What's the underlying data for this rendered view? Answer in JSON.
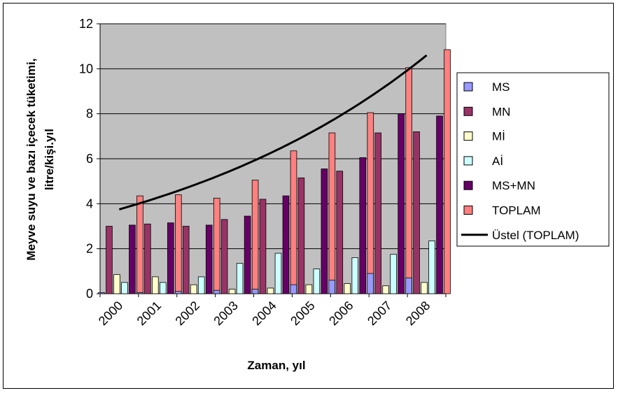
{
  "chart_data": {
    "type": "bar",
    "xlabel": "Zaman, yıl",
    "ylabel_lines": [
      "Meyve suyu ve bazı içecek tüketimi,",
      "litre/kişi.yıl"
    ],
    "ylim": [
      0,
      12
    ],
    "yticks": [
      "0",
      "2",
      "4",
      "6",
      "8",
      "10",
      "12"
    ],
    "categories": [
      "2000",
      "2001",
      "2002",
      "2003",
      "2004",
      "2005",
      "2006",
      "2007",
      "2008"
    ],
    "grid": true,
    "legend_position": "right",
    "series": [
      {
        "name": "MS",
        "color": "#9999ff",
        "values": [
          0.05,
          0.05,
          0.1,
          0.15,
          0.2,
          0.4,
          0.6,
          0.9,
          0.7
        ]
      },
      {
        "name": "MN",
        "color": "#993366",
        "values": [
          3.0,
          3.1,
          3.0,
          3.3,
          4.2,
          5.15,
          5.45,
          7.15,
          7.2
        ]
      },
      {
        "name": "Mİ",
        "color": "#ffffcc",
        "values": [
          0.85,
          0.75,
          0.4,
          0.2,
          0.25,
          0.4,
          0.45,
          0.35,
          0.5
        ]
      },
      {
        "name": "Aİ",
        "color": "#ccffff",
        "values": [
          0.5,
          0.5,
          0.75,
          1.35,
          1.8,
          1.1,
          1.6,
          1.75,
          2.35
        ]
      },
      {
        "name": "MS+MN",
        "color": "#660066",
        "values": [
          3.05,
          3.15,
          3.05,
          3.45,
          4.35,
          5.55,
          6.05,
          8.0,
          7.9
        ]
      },
      {
        "name": "TOPLAM",
        "color": "#ff8080",
        "values": [
          4.35,
          4.4,
          4.25,
          5.05,
          6.35,
          7.15,
          8.05,
          10.05,
          10.85
        ]
      }
    ],
    "trendline": {
      "name": "Üstel (TOPLAM)",
      "color": "#000000",
      "x": [
        "2000",
        "2008"
      ],
      "y": [
        3.75,
        10.6
      ]
    }
  }
}
